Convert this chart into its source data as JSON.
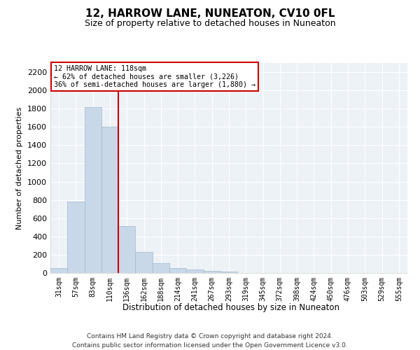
{
  "title": "12, HARROW LANE, NUNEATON, CV10 0FL",
  "subtitle": "Size of property relative to detached houses in Nuneaton",
  "xlabel": "Distribution of detached houses by size in Nuneaton",
  "ylabel": "Number of detached properties",
  "categories": [
    "31sqm",
    "57sqm",
    "83sqm",
    "110sqm",
    "136sqm",
    "162sqm",
    "188sqm",
    "214sqm",
    "241sqm",
    "267sqm",
    "293sqm",
    "319sqm",
    "345sqm",
    "372sqm",
    "398sqm",
    "424sqm",
    "450sqm",
    "476sqm",
    "503sqm",
    "529sqm",
    "555sqm"
  ],
  "values": [
    50,
    780,
    1820,
    1605,
    515,
    230,
    105,
    50,
    40,
    25,
    18,
    0,
    0,
    0,
    0,
    0,
    0,
    0,
    0,
    0,
    0
  ],
  "bar_color": "#c8d8e8",
  "bar_edge_color": "#a0b8cc",
  "vline_color": "#cc0000",
  "vline_pos": 3.5,
  "annotation_text": "12 HARROW LANE: 118sqm\n← 62% of detached houses are smaller (3,226)\n36% of semi-detached houses are larger (1,880) →",
  "annotation_box_color": "white",
  "annotation_box_edge": "#cc0000",
  "ylim": [
    0,
    2300
  ],
  "yticks": [
    0,
    200,
    400,
    600,
    800,
    1000,
    1200,
    1400,
    1600,
    1800,
    2000,
    2200
  ],
  "bg_color": "#edf2f7",
  "grid_color": "white",
  "footer": "Contains HM Land Registry data © Crown copyright and database right 2024.\nContains public sector information licensed under the Open Government Licence v3.0."
}
